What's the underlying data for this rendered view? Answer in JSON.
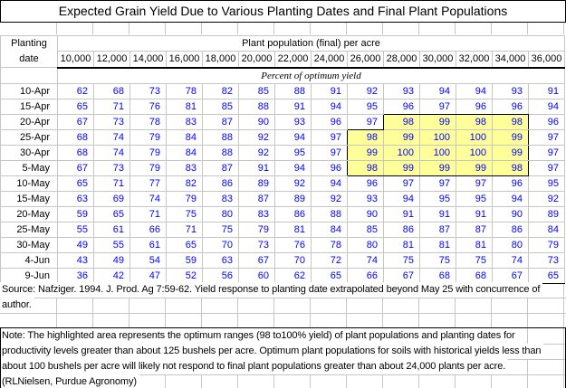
{
  "title": "Expected Grain Yield Due to Various Planting Dates and Final Plant Populations",
  "table": {
    "corner_line1": "Planting",
    "corner_line2": "date",
    "population_header": "Plant population (final) per acre",
    "subheader": "Percent of optimum yield",
    "populations": [
      "10,000",
      "12,000",
      "14,000",
      "16,000",
      "18,000",
      "20,000",
      "22,000",
      "24,000",
      "26,000",
      "28,000",
      "30,000",
      "32,000",
      "34,000",
      "36,000"
    ],
    "rows": [
      {
        "date": "10-Apr",
        "values": [
          62,
          68,
          73,
          78,
          82,
          85,
          88,
          91,
          92,
          93,
          94,
          94,
          93,
          91
        ],
        "hl": null
      },
      {
        "date": "15-Apr",
        "values": [
          65,
          71,
          76,
          81,
          85,
          88,
          91,
          94,
          95,
          96,
          97,
          96,
          96,
          94
        ],
        "hl": null
      },
      {
        "date": "20-Apr",
        "values": [
          67,
          73,
          78,
          83,
          87,
          90,
          93,
          96,
          97,
          98,
          99,
          98,
          98,
          96
        ],
        "hl": [
          9,
          12
        ]
      },
      {
        "date": "25-Apr",
        "values": [
          68,
          74,
          79,
          84,
          88,
          92,
          94,
          97,
          98,
          99,
          100,
          100,
          99,
          97
        ],
        "hl": [
          8,
          12
        ]
      },
      {
        "date": "30-Apr",
        "values": [
          68,
          74,
          79,
          84,
          88,
          92,
          95,
          97,
          99,
          100,
          100,
          100,
          99,
          97
        ],
        "hl": [
          8,
          12
        ]
      },
      {
        "date": "5-May",
        "values": [
          67,
          73,
          79,
          83,
          87,
          91,
          94,
          96,
          98,
          99,
          99,
          99,
          98,
          97
        ],
        "hl": [
          8,
          12
        ]
      },
      {
        "date": "10-May",
        "values": [
          65,
          71,
          77,
          82,
          86,
          89,
          92,
          94,
          96,
          97,
          97,
          97,
          96,
          95
        ],
        "hl": null
      },
      {
        "date": "15-May",
        "values": [
          63,
          69,
          74,
          79,
          83,
          87,
          89,
          92,
          93,
          94,
          95,
          95,
          94,
          92
        ],
        "hl": null
      },
      {
        "date": "20-May",
        "values": [
          59,
          65,
          71,
          75,
          80,
          83,
          86,
          88,
          90,
          91,
          91,
          91,
          90,
          89
        ],
        "hl": null
      },
      {
        "date": "25-May",
        "values": [
          55,
          61,
          66,
          71,
          75,
          79,
          81,
          84,
          85,
          86,
          87,
          87,
          86,
          84
        ],
        "hl": null
      },
      {
        "date": "30-May",
        "values": [
          49,
          55,
          61,
          65,
          70,
          73,
          76,
          78,
          80,
          81,
          81,
          81,
          80,
          79
        ],
        "hl": null
      },
      {
        "date": "4-Jun",
        "values": [
          43,
          49,
          54,
          59,
          63,
          67,
          70,
          72,
          74,
          75,
          75,
          75,
          74,
          73
        ],
        "hl": null
      },
      {
        "date": "9-Jun",
        "values": [
          36,
          42,
          47,
          52,
          56,
          60,
          62,
          65,
          66,
          67,
          68,
          68,
          67,
          65
        ],
        "hl": null
      }
    ]
  },
  "source_lines": [
    "Source: Nafziger. 1994. J. Prod. Ag 7:59-62. Yield response to planting date extrapolated beyond May 25 with concurrence of",
    "author."
  ],
  "note_lines": [
    "Note: The highlighted area represents the optimum ranges (98 to100% yield) of plant populations and planting dates for",
    "productivity levels greater than about 125 bushels per acre. Optimum plant populations for soils with historical yields less than",
    "about 100 bushels per acre will likely not respond to final plant populations greater than about 24,000 plants per acre.",
    "(RLNielsen, Purdue Agronomy)"
  ],
  "colors": {
    "value_text": "#0000FF",
    "highlight": "#FFFF99",
    "gridline": "#C6C6C6"
  }
}
